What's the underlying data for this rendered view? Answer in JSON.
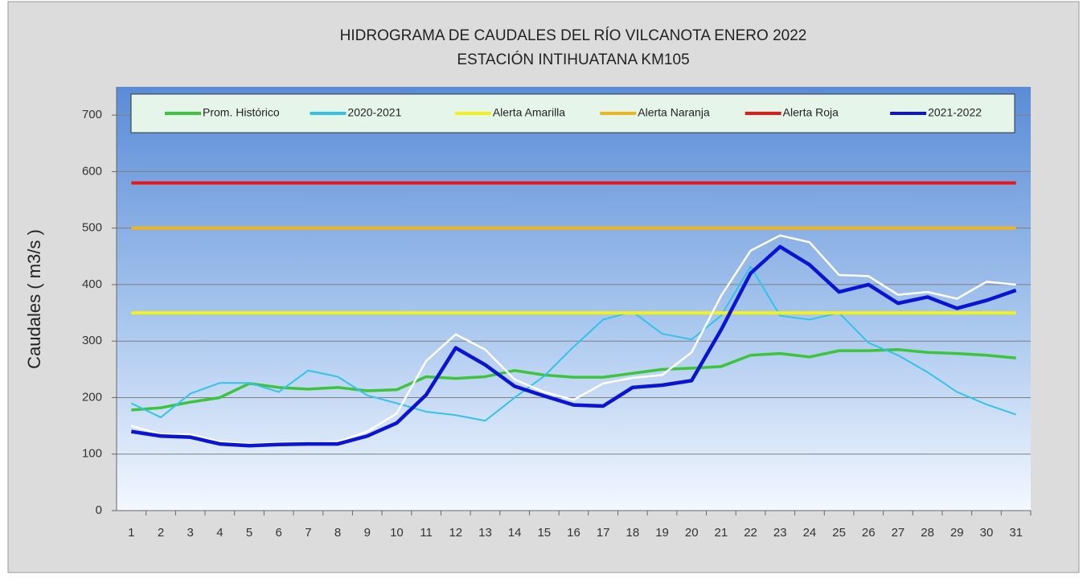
{
  "chart_data": {
    "type": "line",
    "title": "HIDROGRAMA DE CAUDALES DEL RÍO VILCANOTA ENERO 2022",
    "subtitle": "ESTACIÓN INTIHUATANA KM105",
    "y_label": "Caudales ( m3/s )",
    "categories": [
      "1",
      "2",
      "3",
      "4",
      "5",
      "6",
      "7",
      "8",
      "9",
      "10",
      "11",
      "12",
      "13",
      "14",
      "15",
      "16",
      "17",
      "18",
      "19",
      "20",
      "21",
      "22",
      "23",
      "24",
      "25",
      "26",
      "27",
      "28",
      "29",
      "30",
      "31"
    ],
    "ylim": [
      0,
      750
    ],
    "yticks": [
      0,
      100,
      200,
      300,
      400,
      500,
      600,
      700
    ],
    "grid": true,
    "legend": "top",
    "series": [
      {
        "name": "Prom. Histórico",
        "color": "#3cc43c",
        "width": 3.5,
        "values": [
          178,
          182,
          192,
          200,
          225,
          218,
          215,
          218,
          212,
          214,
          237,
          234,
          237,
          248,
          240,
          236,
          236,
          243,
          250,
          252,
          255,
          275,
          278,
          272,
          283,
          283,
          285,
          280,
          278,
          275,
          270
        ]
      },
      {
        "name": "2020-2021",
        "color": "#33c3e8",
        "width": 2,
        "values": [
          190,
          165,
          207,
          226,
          226,
          210,
          248,
          237,
          204,
          190,
          175,
          169,
          159,
          200,
          238,
          290,
          338,
          352,
          313,
          303,
          345,
          432,
          345,
          338,
          350,
          297,
          275,
          245,
          210,
          188,
          170
        ]
      },
      {
        "name": "Alerta Amarilla",
        "color": "#f2f21a",
        "width": 4,
        "values": [
          350,
          350,
          350,
          350,
          350,
          350,
          350,
          350,
          350,
          350,
          350,
          350,
          350,
          350,
          350,
          350,
          350,
          350,
          350,
          350,
          350,
          350,
          350,
          350,
          350,
          350,
          350,
          350,
          350,
          350,
          350
        ]
      },
      {
        "name": "Alerta Naranja",
        "color": "#f0b41e",
        "width": 4,
        "values": [
          500,
          500,
          500,
          500,
          500,
          500,
          500,
          500,
          500,
          500,
          500,
          500,
          500,
          500,
          500,
          500,
          500,
          500,
          500,
          500,
          500,
          500,
          500,
          500,
          500,
          500,
          500,
          500,
          500,
          500,
          500
        ]
      },
      {
        "name": "Alerta Roja",
        "color": "#e81818",
        "width": 4,
        "values": [
          580,
          580,
          580,
          580,
          580,
          580,
          580,
          580,
          580,
          580,
          580,
          580,
          580,
          580,
          580,
          580,
          580,
          580,
          580,
          580,
          580,
          580,
          580,
          580,
          580,
          580,
          580,
          580,
          580,
          580,
          580
        ]
      },
      {
        "color": "#ffffff",
        "width": 2.5,
        "values": [
          150,
          135,
          135,
          122,
          118,
          120,
          120,
          122,
          140,
          172,
          265,
          312,
          285,
          232,
          210,
          196,
          225,
          235,
          240,
          280,
          380,
          460,
          487,
          475,
          417,
          415,
          382,
          387,
          375,
          405,
          400
        ]
      },
      {
        "name": "2021-2022",
        "color": "#0a14d2",
        "width": 4.5,
        "values": [
          140,
          132,
          130,
          118,
          115,
          117,
          118,
          118,
          132,
          155,
          205,
          288,
          258,
          220,
          203,
          187,
          185,
          218,
          222,
          230,
          320,
          420,
          467,
          435,
          387,
          400,
          367,
          378,
          358,
          372,
          390
        ]
      }
    ]
  }
}
